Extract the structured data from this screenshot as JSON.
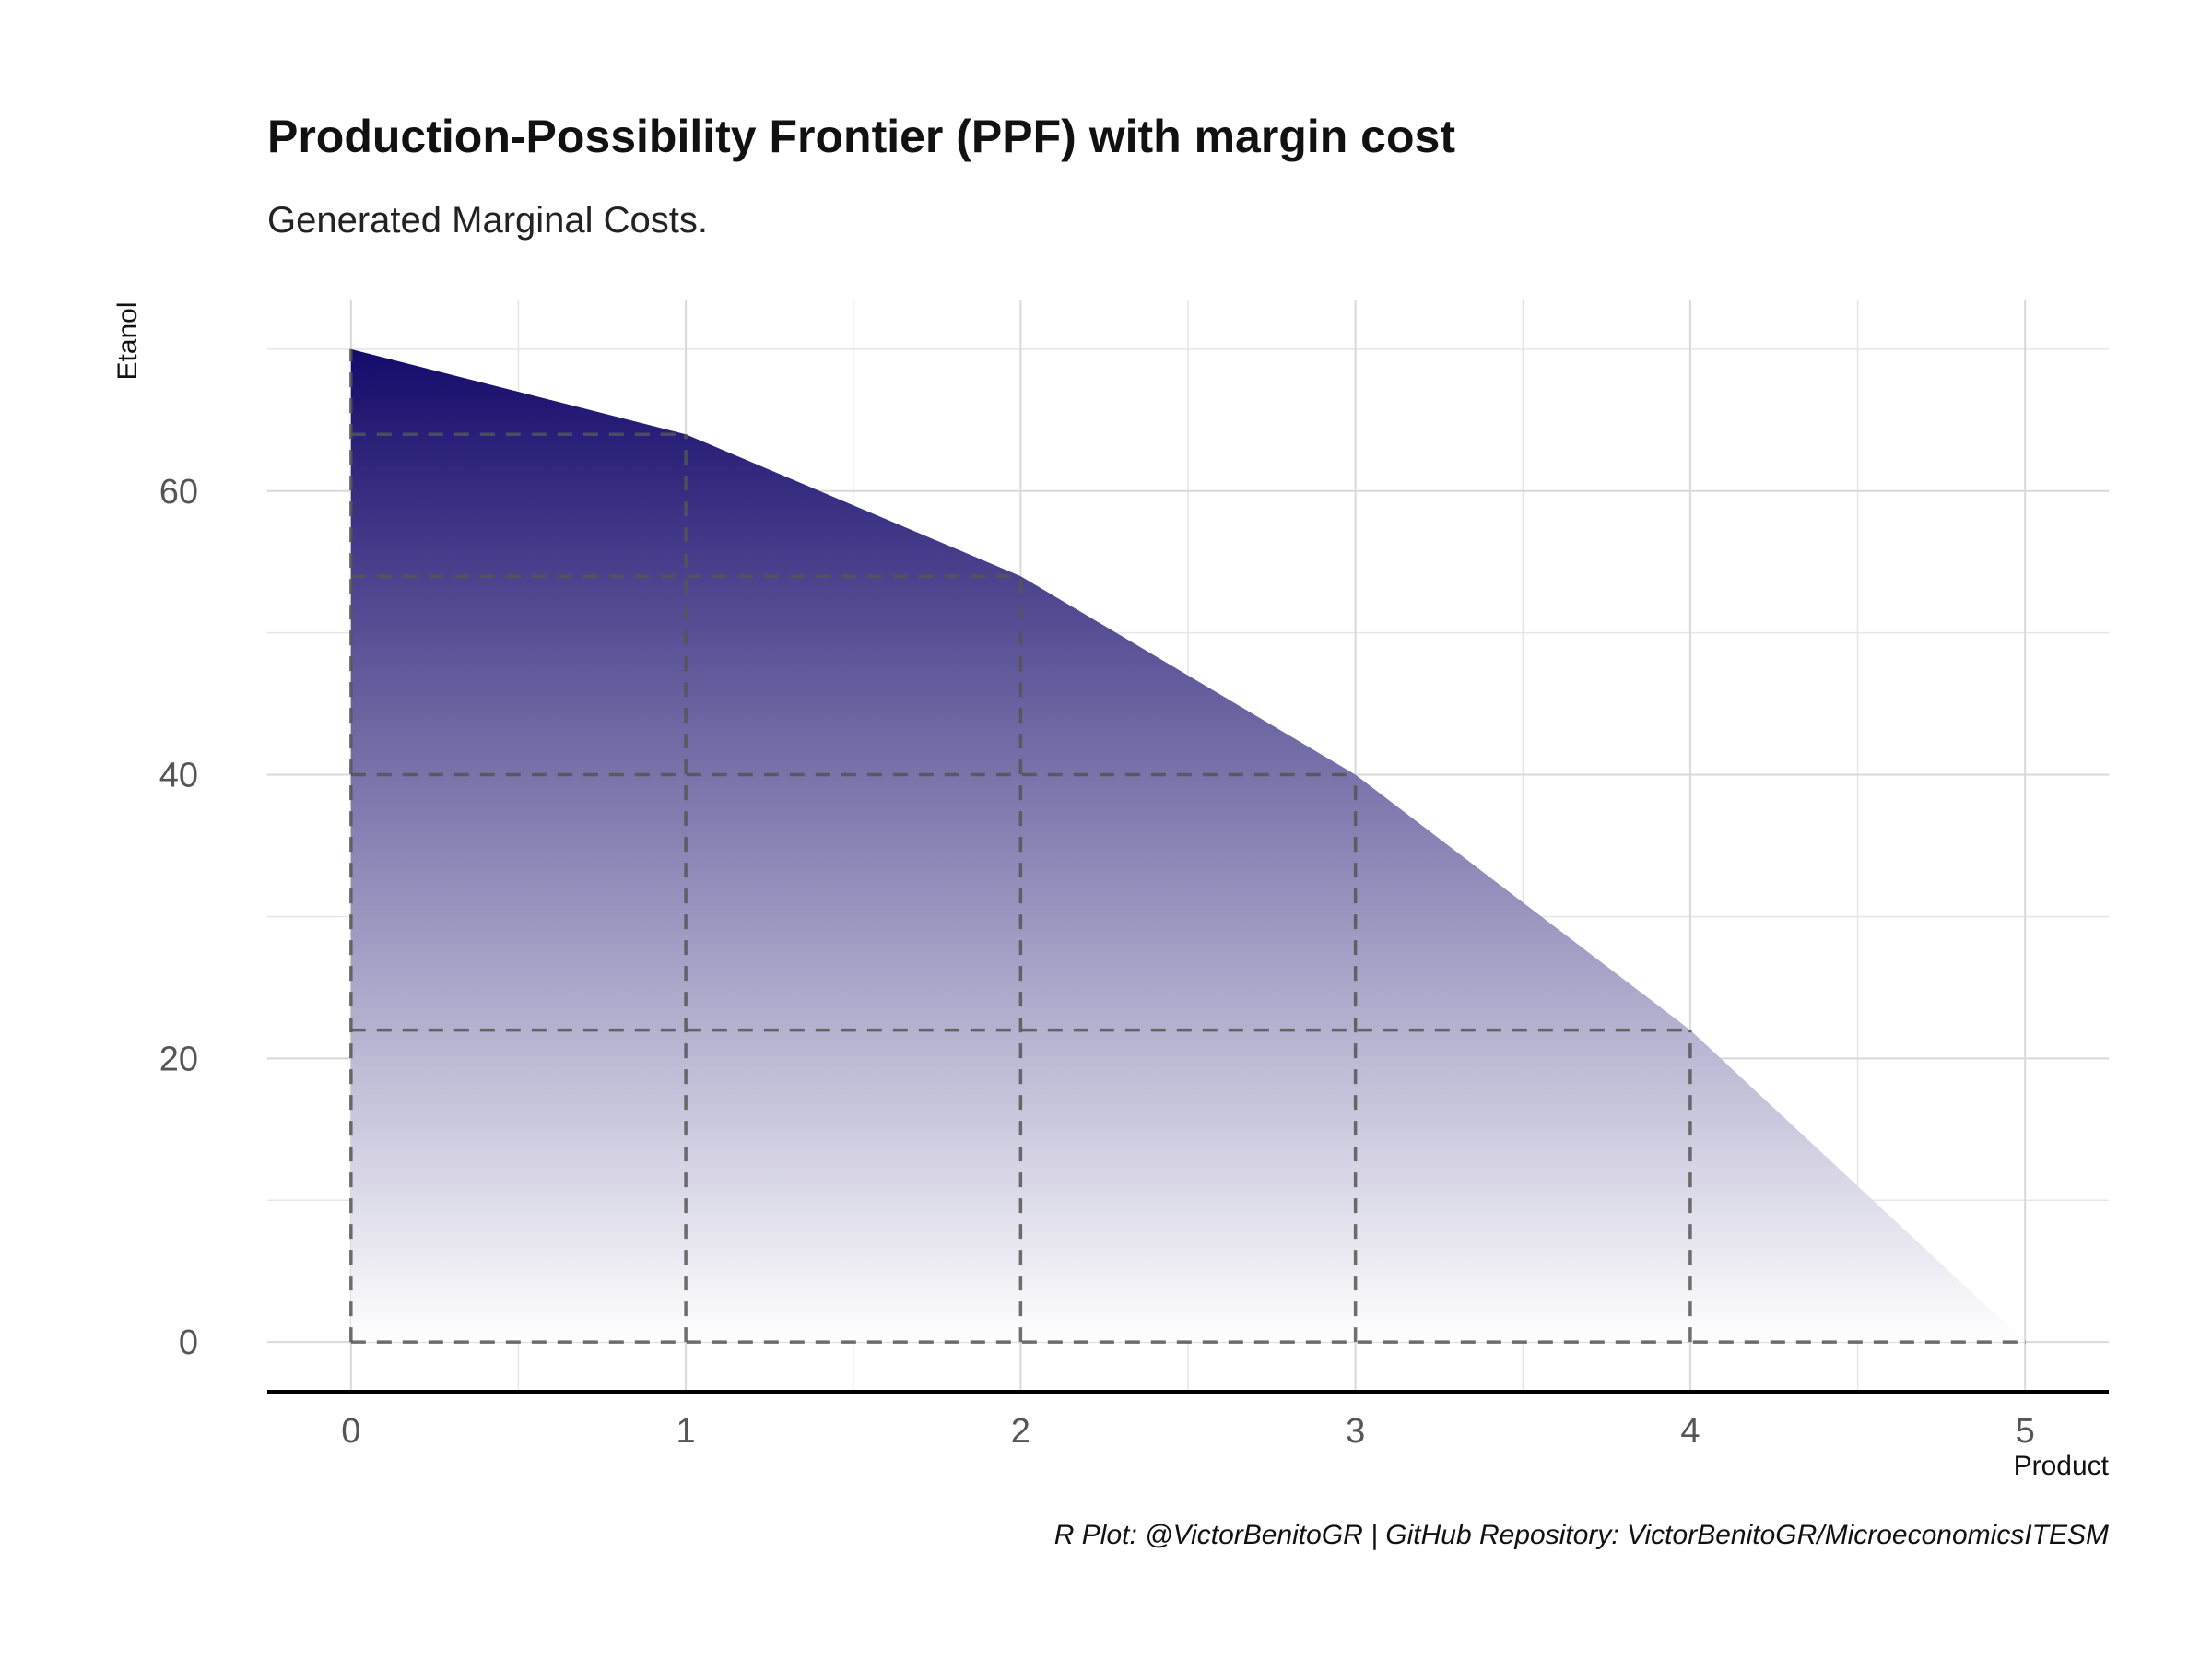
{
  "chart_data": {
    "type": "area",
    "title": "Production-Possibility Frontier (PPF) with margin cost",
    "subtitle": "Generated Marginal Costs.",
    "xlabel": "Product",
    "ylabel": "Etanol",
    "caption": "R Plot: @VictorBenitoGR | GitHub Repository: VictorBenitoGR/MicroeconomicsITESM",
    "x": [
      0,
      1,
      2,
      3,
      4,
      5
    ],
    "y": [
      70,
      64,
      54,
      40,
      22,
      0
    ],
    "xlim": [
      -0.25,
      5.25
    ],
    "ylim": [
      -3.5,
      73.5
    ],
    "x_ticks": [
      0,
      1,
      2,
      3,
      4,
      5
    ],
    "y_ticks": [
      0,
      20,
      40,
      60
    ],
    "grid": true,
    "guides": "dashed lines from each frontier point to both axes",
    "fill_gradient": {
      "top": "#140a6b",
      "bottom": "#ffffff"
    },
    "guide_color": "#555555"
  }
}
